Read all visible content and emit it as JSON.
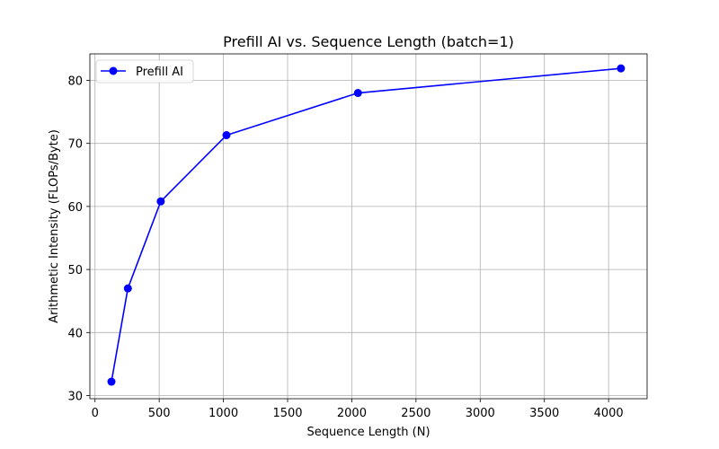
{
  "chart_data": {
    "type": "line",
    "title": "Prefill AI vs. Sequence Length (batch=1)",
    "xlabel": "Sequence Length (N)",
    "ylabel": "Arithmetic Intensity (FLOPs/Byte)",
    "xlim": [
      -40,
      4300
    ],
    "ylim": [
      29.5,
      84.2
    ],
    "xticks": [
      0,
      500,
      1000,
      1500,
      2000,
      2500,
      3000,
      3500,
      4000
    ],
    "yticks": [
      30,
      40,
      50,
      60,
      70,
      80
    ],
    "grid": true,
    "legend_position": "top-left",
    "series": [
      {
        "name": "Prefill AI",
        "color": "#0000ff",
        "marker": "circle",
        "x": [
          128,
          256,
          512,
          1024,
          2048,
          4096
        ],
        "y": [
          32.2,
          47.0,
          60.8,
          71.3,
          78.0,
          81.9
        ]
      }
    ]
  }
}
